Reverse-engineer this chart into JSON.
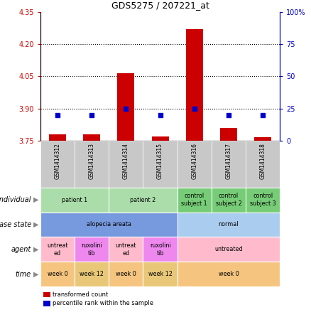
{
  "title": "GDS5275 / 207221_at",
  "samples": [
    "GSM1414312",
    "GSM1414313",
    "GSM1414314",
    "GSM1414315",
    "GSM1414316",
    "GSM1414317",
    "GSM1414318"
  ],
  "red_values": [
    3.78,
    3.78,
    4.065,
    3.77,
    4.27,
    3.81,
    3.765
  ],
  "blue_values": [
    20,
    20,
    25,
    20,
    25,
    20,
    20
  ],
  "ylim_left": [
    3.75,
    4.35
  ],
  "ylim_right": [
    0,
    100
  ],
  "yticks_left": [
    3.75,
    3.9,
    4.05,
    4.2,
    4.35
  ],
  "yticks_right": [
    0,
    25,
    50,
    75,
    100
  ],
  "ytick_labels_right": [
    "0",
    "25",
    "50",
    "75",
    "100%"
  ],
  "hlines": [
    3.9,
    4.05,
    4.2
  ],
  "bar_width": 0.5,
  "bar_bottom": 3.75,
  "rows": [
    {
      "label": "individual",
      "cells": [
        {
          "text": "patient 1",
          "span": [
            0,
            2
          ],
          "color": "#AADDAA"
        },
        {
          "text": "patient 2",
          "span": [
            2,
            4
          ],
          "color": "#AADDAA"
        },
        {
          "text": "control\nsubject 1",
          "span": [
            4,
            5
          ],
          "color": "#77CC77"
        },
        {
          "text": "control\nsubject 2",
          "span": [
            5,
            6
          ],
          "color": "#77CC77"
        },
        {
          "text": "control\nsubject 3",
          "span": [
            6,
            7
          ],
          "color": "#77CC77"
        }
      ]
    },
    {
      "label": "disease state",
      "cells": [
        {
          "text": "alopecia areata",
          "span": [
            0,
            4
          ],
          "color": "#7799DD"
        },
        {
          "text": "normal",
          "span": [
            4,
            7
          ],
          "color": "#AACCEE"
        }
      ]
    },
    {
      "label": "agent",
      "cells": [
        {
          "text": "untreat\ned",
          "span": [
            0,
            1
          ],
          "color": "#FFBBCC"
        },
        {
          "text": "ruxolini\ntib",
          "span": [
            1,
            2
          ],
          "color": "#EE88EE"
        },
        {
          "text": "untreat\ned",
          "span": [
            2,
            3
          ],
          "color": "#FFBBCC"
        },
        {
          "text": "ruxolini\ntib",
          "span": [
            3,
            4
          ],
          "color": "#EE88EE"
        },
        {
          "text": "untreated",
          "span": [
            4,
            7
          ],
          "color": "#FFBBCC"
        }
      ]
    },
    {
      "label": "time",
      "cells": [
        {
          "text": "week 0",
          "span": [
            0,
            1
          ],
          "color": "#F5C580"
        },
        {
          "text": "week 12",
          "span": [
            1,
            2
          ],
          "color": "#E8C878"
        },
        {
          "text": "week 0",
          "span": [
            2,
            3
          ],
          "color": "#F5C580"
        },
        {
          "text": "week 12",
          "span": [
            3,
            4
          ],
          "color": "#E8C878"
        },
        {
          "text": "week 0",
          "span": [
            4,
            7
          ],
          "color": "#F5C580"
        }
      ]
    }
  ],
  "legend_items": [
    {
      "color": "#CC0000",
      "label": "transformed count"
    },
    {
      "color": "#0000CC",
      "label": "percentile rank within the sample"
    }
  ],
  "left_tick_color": "#CC0000",
  "right_tick_color": "#0000CC",
  "bar_color": "#CC0000",
  "dot_color": "#0000CC",
  "sample_bg": "#C8C8C8",
  "arrow_color": "#888888"
}
